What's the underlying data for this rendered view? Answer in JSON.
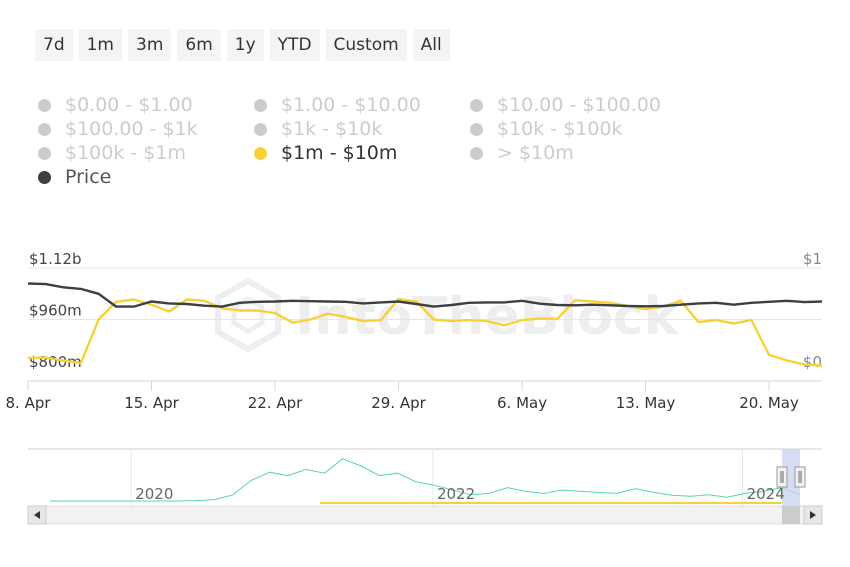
{
  "range_selector": {
    "buttons": [
      "7d",
      "1m",
      "3m",
      "6m",
      "1y",
      "YTD",
      "Custom",
      "All"
    ]
  },
  "legend": {
    "items": [
      {
        "label": "$0.00 - $1.00",
        "color": "#cccccc",
        "active": false
      },
      {
        "label": "$1.00 - $10.00",
        "color": "#cccccc",
        "active": false
      },
      {
        "label": "$10.00 - $100.00",
        "color": "#cccccc",
        "active": false
      },
      {
        "label": "$100.00 - $1k",
        "color": "#cccccc",
        "active": false
      },
      {
        "label": "$1k - $10k",
        "color": "#cccccc",
        "active": false
      },
      {
        "label": "$10k - $100k",
        "color": "#cccccc",
        "active": false
      },
      {
        "label": "$100k - $1m",
        "color": "#cccccc",
        "active": false
      },
      {
        "label": "$1m - $10m",
        "color": "#f7d13a",
        "active": true
      },
      {
        "label": "> $10m",
        "color": "#cccccc",
        "active": false
      },
      {
        "label": "Price",
        "color": "#3b4045",
        "active": true
      }
    ]
  },
  "watermark": "IntoTheBlock",
  "chart_data": {
    "type": "line",
    "x_tick_labels": [
      "8. Apr",
      "15. Apr",
      "22. Apr",
      "29. Apr",
      "6. May",
      "13. May",
      "20. May"
    ],
    "x_tick_days": [
      0,
      7,
      14,
      21,
      28,
      35,
      42
    ],
    "xlim": [
      0,
      45
    ],
    "left_axis": {
      "tick_labels": [
        "$1.12b",
        "$960m",
        "$800m"
      ],
      "tick_values": [
        1120,
        960,
        800
      ],
      "ylim": [
        800,
        1120
      ],
      "unit": "$m"
    },
    "right_axis": {
      "tick_labels": [
        "$1",
        "$0"
      ],
      "tick_values": [
        1,
        0
      ],
      "ylim": [
        0,
        1
      ]
    },
    "series": [
      {
        "name": "$1m - $10m",
        "axis": "left",
        "color": "#f7d13a",
        "x": [
          0,
          1,
          2,
          3,
          4,
          5,
          6,
          7,
          8,
          9,
          10,
          11,
          12,
          13,
          14,
          15,
          16,
          17,
          18,
          19,
          20,
          21,
          22,
          23,
          24,
          25,
          26,
          27,
          28,
          29,
          30,
          31,
          32,
          33,
          34,
          35,
          36,
          37,
          38,
          39,
          40,
          41,
          42,
          43,
          44,
          45
        ],
        "values": [
          840,
          842,
          832,
          825,
          960,
          1015,
          1022,
          1006,
          985,
          1022,
          1018,
          995,
          988,
          988,
          980,
          950,
          960,
          978,
          968,
          955,
          958,
          1024,
          1016,
          960,
          955,
          958,
          955,
          942,
          958,
          963,
          962,
          1020,
          1016,
          1012,
          1002,
          992,
          1000,
          1018,
          952,
          958,
          948,
          958,
          850,
          833,
          820,
          817
        ]
      },
      {
        "name": "Price",
        "axis": "left",
        "color": "#3b4045",
        "x": [
          0,
          1,
          2,
          3,
          4,
          5,
          6,
          7,
          8,
          9,
          10,
          11,
          12,
          13,
          14,
          15,
          16,
          17,
          18,
          19,
          20,
          21,
          22,
          23,
          24,
          25,
          26,
          27,
          28,
          29,
          30,
          31,
          32,
          33,
          34,
          35,
          36,
          37,
          38,
          39,
          40,
          41,
          42,
          43,
          44,
          45
        ],
        "values": [
          1072,
          1070,
          1060,
          1055,
          1040,
          1000,
          1000,
          1016,
          1010,
          1008,
          1003,
          1000,
          1012,
          1015,
          1016,
          1018,
          1017,
          1016,
          1015,
          1010,
          1013,
          1016,
          1008,
          1000,
          1005,
          1012,
          1013,
          1013,
          1018,
          1009,
          1005,
          1004,
          1006,
          1004,
          1002,
          1001,
          1002,
          1006,
          1010,
          1012,
          1006,
          1012,
          1015,
          1018,
          1014,
          1016
        ]
      }
    ]
  },
  "navigator": {
    "year_labels": [
      "2020",
      "2022",
      "2024"
    ],
    "year_positions": [
      0.13,
      0.51,
      0.9
    ],
    "series_color": "#58d3b5",
    "series_values": [
      0.02,
      0.02,
      0.02,
      0.02,
      0.02,
      0.02,
      0.02,
      0.02,
      0.03,
      0.05,
      0.15,
      0.45,
      0.62,
      0.55,
      0.68,
      0.6,
      0.9,
      0.75,
      0.55,
      0.6,
      0.42,
      0.35,
      0.25,
      0.15,
      0.18,
      0.3,
      0.22,
      0.18,
      0.25,
      0.22,
      0.2,
      0.18,
      0.28,
      0.2,
      0.14,
      0.12,
      0.15,
      0.1,
      0.18,
      0.22,
      0.3,
      0.15
    ],
    "yellow_series_color": "#f7d13a"
  }
}
